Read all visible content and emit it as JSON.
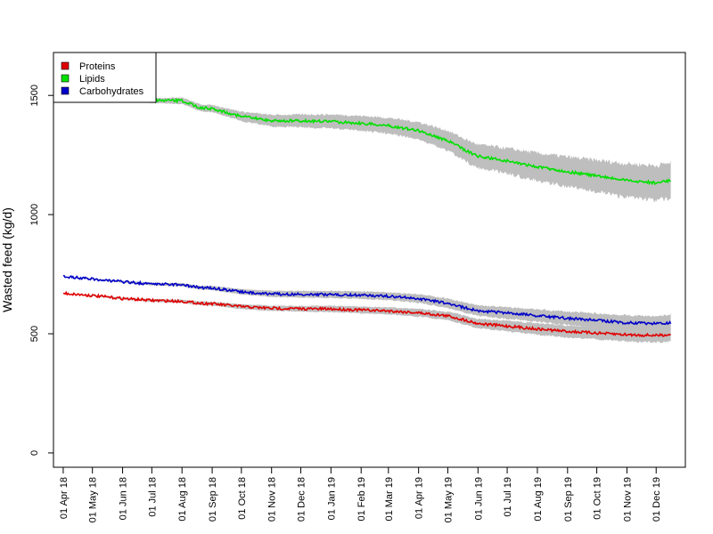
{
  "chart_data": {
    "type": "line",
    "ylabel": "Wasted feed (kg/d)",
    "ylim": [
      -60,
      1680
    ],
    "yticks": [
      0,
      500,
      1000,
      1500
    ],
    "xlim": [
      "2018-03-22",
      "2019-12-31"
    ],
    "x_ticks": [
      {
        "date": "2018-04-01",
        "label": "01 Apr 18"
      },
      {
        "date": "2018-05-01",
        "label": "01 May 18"
      },
      {
        "date": "2018-06-01",
        "label": "01 Jun 18"
      },
      {
        "date": "2018-07-01",
        "label": "01 Jul 18"
      },
      {
        "date": "2018-08-01",
        "label": "01 Aug 18"
      },
      {
        "date": "2018-09-01",
        "label": "01 Sep 18"
      },
      {
        "date": "2018-10-01",
        "label": "01 Oct 18"
      },
      {
        "date": "2018-11-01",
        "label": "01 Nov 18"
      },
      {
        "date": "2018-12-01",
        "label": "01 Dec 18"
      },
      {
        "date": "2019-01-01",
        "label": "01 Jan 19"
      },
      {
        "date": "2019-02-01",
        "label": "01 Feb 19"
      },
      {
        "date": "2019-03-01",
        "label": "01 Mar 19"
      },
      {
        "date": "2019-04-01",
        "label": "01 Apr 19"
      },
      {
        "date": "2019-05-01",
        "label": "01 May 19"
      },
      {
        "date": "2019-06-01",
        "label": "01 Jun 19"
      },
      {
        "date": "2019-07-01",
        "label": "01 Jul 19"
      },
      {
        "date": "2019-08-01",
        "label": "01 Aug 19"
      },
      {
        "date": "2019-09-01",
        "label": "01 Sep 19"
      },
      {
        "date": "2019-10-01",
        "label": "01 Oct 19"
      },
      {
        "date": "2019-11-01",
        "label": "01 Nov 19"
      },
      {
        "date": "2019-12-01",
        "label": "01 Dec 19"
      }
    ],
    "legend_position": "top-left",
    "band_color": "#bebebe",
    "series": [
      {
        "name": "Proteins",
        "color": "#e00000",
        "points": [
          [
            "2018-04-01",
            670,
            670,
            670
          ],
          [
            "2018-05-01",
            660,
            662,
            658
          ],
          [
            "2018-06-01",
            648,
            652,
            644
          ],
          [
            "2018-07-01",
            640,
            646,
            634
          ],
          [
            "2018-08-01",
            636,
            643,
            629
          ],
          [
            "2018-08-20",
            628,
            636,
            620
          ],
          [
            "2018-09-01",
            626,
            634,
            618
          ],
          [
            "2018-10-01",
            614,
            624,
            604
          ],
          [
            "2018-11-01",
            607,
            618,
            596
          ],
          [
            "2018-12-01",
            605,
            617,
            593
          ],
          [
            "2019-01-01",
            604,
            617,
            591
          ],
          [
            "2019-02-01",
            600,
            614,
            586
          ],
          [
            "2019-03-01",
            596,
            611,
            581
          ],
          [
            "2019-04-01",
            588,
            604,
            572
          ],
          [
            "2019-05-01",
            575,
            593,
            557
          ],
          [
            "2019-05-20",
            556,
            575,
            537
          ],
          [
            "2019-06-01",
            543,
            563,
            523
          ],
          [
            "2019-07-01",
            532,
            554,
            510
          ],
          [
            "2019-08-01",
            520,
            544,
            496
          ],
          [
            "2019-09-01",
            510,
            535,
            485
          ],
          [
            "2019-10-01",
            503,
            530,
            476
          ],
          [
            "2019-11-01",
            496,
            524,
            468
          ],
          [
            "2019-12-01",
            493,
            522,
            464
          ],
          [
            "2019-12-16",
            497,
            527,
            467
          ]
        ]
      },
      {
        "name": "Lipids",
        "color": "#00e000",
        "points": [
          [
            "2018-04-01",
            1510,
            1510,
            1510
          ],
          [
            "2018-05-01",
            1498,
            1502,
            1494
          ],
          [
            "2018-06-01",
            1488,
            1494,
            1482
          ],
          [
            "2018-07-01",
            1478,
            1488,
            1468
          ],
          [
            "2018-08-01",
            1478,
            1492,
            1464
          ],
          [
            "2018-08-20",
            1448,
            1462,
            1434
          ],
          [
            "2018-09-01",
            1445,
            1460,
            1430
          ],
          [
            "2018-10-01",
            1412,
            1432,
            1392
          ],
          [
            "2018-11-01",
            1394,
            1418,
            1370
          ],
          [
            "2018-12-01",
            1393,
            1420,
            1366
          ],
          [
            "2019-01-01",
            1391,
            1420,
            1362
          ],
          [
            "2019-02-01",
            1383,
            1414,
            1352
          ],
          [
            "2019-03-01",
            1373,
            1406,
            1340
          ],
          [
            "2019-04-01",
            1352,
            1388,
            1316
          ],
          [
            "2019-05-01",
            1310,
            1352,
            1268
          ],
          [
            "2019-05-20",
            1268,
            1314,
            1222
          ],
          [
            "2019-06-01",
            1245,
            1294,
            1196
          ],
          [
            "2019-07-01",
            1225,
            1278,
            1172
          ],
          [
            "2019-08-01",
            1200,
            1258,
            1142
          ],
          [
            "2019-09-01",
            1180,
            1242,
            1118
          ],
          [
            "2019-10-01",
            1162,
            1228,
            1096
          ],
          [
            "2019-11-01",
            1143,
            1214,
            1072
          ],
          [
            "2019-12-01",
            1133,
            1206,
            1060
          ],
          [
            "2019-12-16",
            1143,
            1218,
            1068
          ]
        ]
      },
      {
        "name": "Carbohydrates",
        "color": "#0000c8",
        "points": [
          [
            "2018-04-01",
            740,
            740,
            740
          ],
          [
            "2018-05-01",
            730,
            732,
            728
          ],
          [
            "2018-06-01",
            718,
            722,
            714
          ],
          [
            "2018-07-01",
            709,
            715,
            703
          ],
          [
            "2018-08-01",
            706,
            713,
            699
          ],
          [
            "2018-08-20",
            693,
            701,
            685
          ],
          [
            "2018-09-01",
            692,
            701,
            683
          ],
          [
            "2018-10-01",
            676,
            687,
            665
          ],
          [
            "2018-11-01",
            667,
            680,
            654
          ],
          [
            "2018-12-01",
            666,
            680,
            652
          ],
          [
            "2019-01-01",
            665,
            680,
            650
          ],
          [
            "2019-02-01",
            662,
            678,
            646
          ],
          [
            "2019-03-01",
            658,
            675,
            641
          ],
          [
            "2019-04-01",
            648,
            666,
            630
          ],
          [
            "2019-05-01",
            628,
            648,
            608
          ],
          [
            "2019-05-20",
            608,
            629,
            587
          ],
          [
            "2019-06-01",
            597,
            619,
            575
          ],
          [
            "2019-07-01",
            587,
            611,
            563
          ],
          [
            "2019-08-01",
            576,
            602,
            550
          ],
          [
            "2019-09-01",
            565,
            593,
            537
          ],
          [
            "2019-10-01",
            556,
            585,
            527
          ],
          [
            "2019-11-01",
            546,
            577,
            515
          ],
          [
            "2019-12-01",
            542,
            574,
            510
          ],
          [
            "2019-12-16",
            547,
            580,
            514
          ]
        ]
      }
    ]
  }
}
